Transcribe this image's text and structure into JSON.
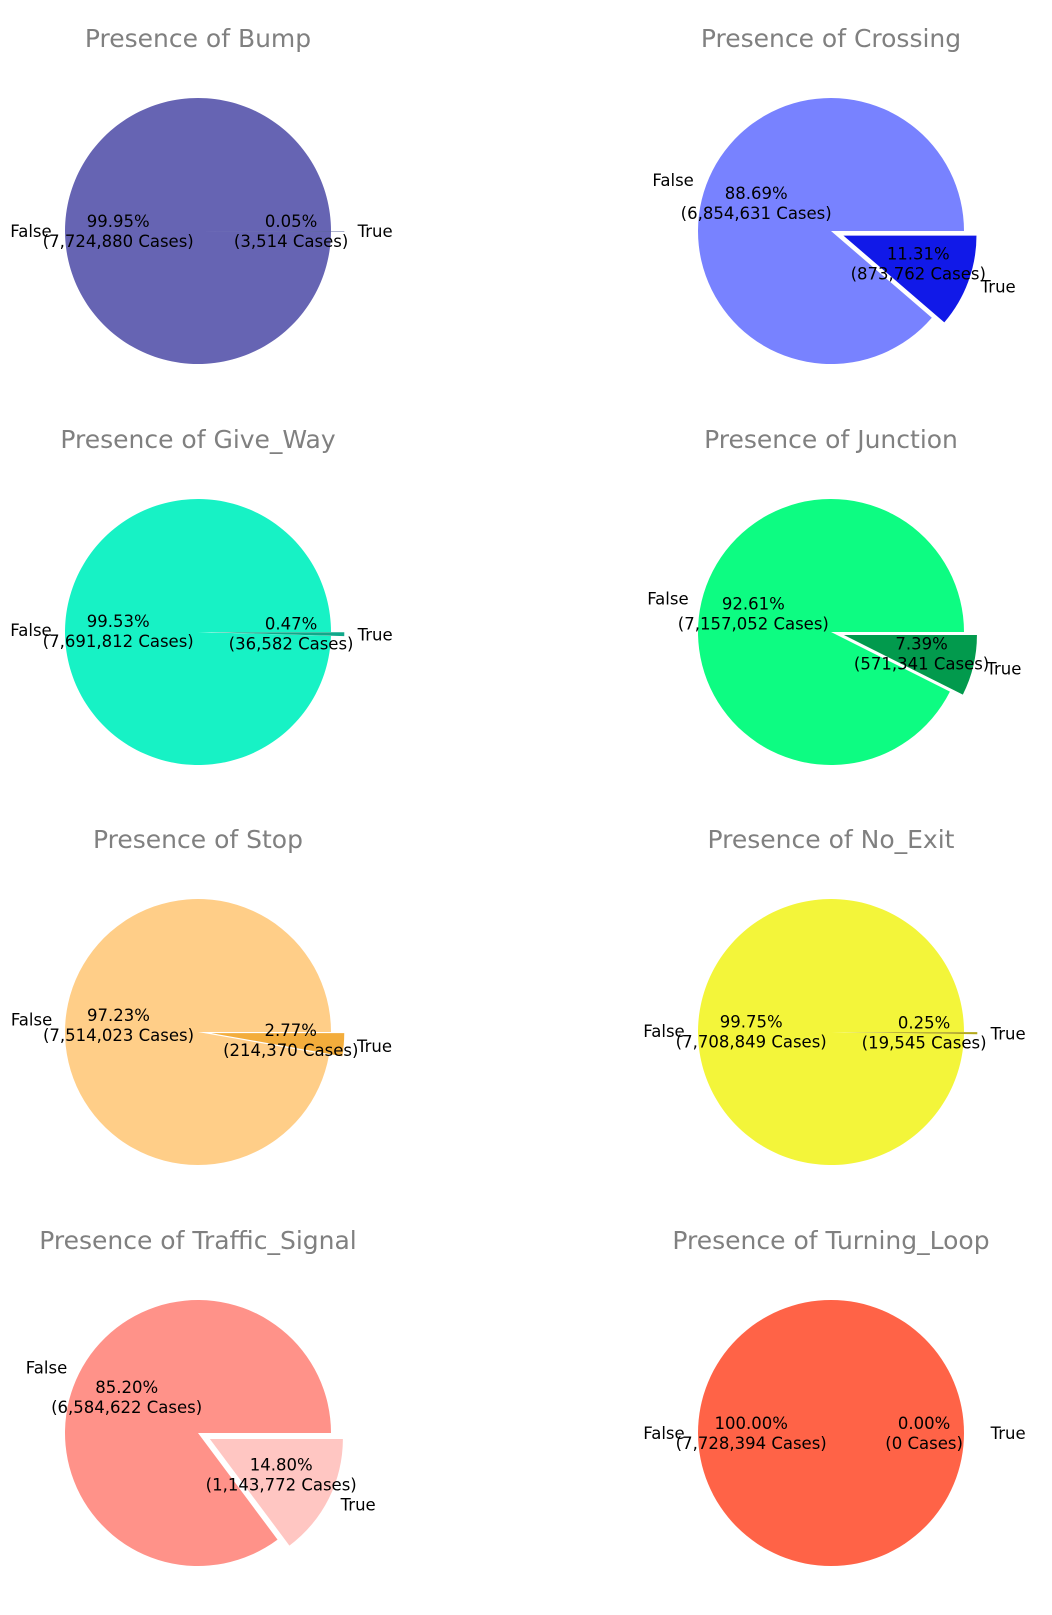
{
  "chart_data": [
    {
      "type": "pie",
      "title": "Presence of Bump",
      "labels": [
        "False",
        "True"
      ],
      "values": [
        7724880,
        3514
      ],
      "pct_labels": [
        "99.95%",
        "0.05%"
      ],
      "count_labels": [
        "(7,724,880 Cases)",
        "(3,514 Cases)"
      ],
      "colors": [
        "#6664b3",
        "#1a2b6e"
      ],
      "explode": [
        0,
        0.1
      ]
    },
    {
      "type": "pie",
      "title": "Presence of Crossing",
      "labels": [
        "False",
        "True"
      ],
      "values": [
        6854631,
        873762
      ],
      "pct_labels": [
        "88.69%",
        "11.31%"
      ],
      "count_labels": [
        "(6,854,631 Cases)",
        "(873,762 Cases)"
      ],
      "colors": [
        "#7882ff",
        "#1119e8"
      ],
      "explode": [
        0,
        0.1
      ]
    },
    {
      "type": "pie",
      "title": "Presence of Give_Way",
      "labels": [
        "False",
        "True"
      ],
      "values": [
        7691812,
        36582
      ],
      "pct_labels": [
        "99.53%",
        "0.47%"
      ],
      "count_labels": [
        "(7,691,812 Cases)",
        "(36,582 Cases)"
      ],
      "colors": [
        "#17f2c5",
        "#10a88a"
      ],
      "explode": [
        0,
        0.1
      ]
    },
    {
      "type": "pie",
      "title": "Presence of Junction",
      "labels": [
        "False",
        "True"
      ],
      "values": [
        7157052,
        571341
      ],
      "pct_labels": [
        "92.61%",
        "7.39%"
      ],
      "count_labels": [
        "(7,157,052 Cases)",
        "(571,341 Cases)"
      ],
      "colors": [
        "#0dfc82",
        "#029a4d"
      ],
      "explode": [
        0,
        0.1
      ]
    },
    {
      "type": "pie",
      "title": "Presence of Stop",
      "labels": [
        "False",
        "True"
      ],
      "values": [
        7514023,
        214370
      ],
      "pct_labels": [
        "97.23%",
        "2.77%"
      ],
      "count_labels": [
        "(7,514,023 Cases)",
        "(214,370 Cases)"
      ],
      "colors": [
        "#ffce88",
        "#f3ad3c"
      ],
      "explode": [
        0,
        0.1
      ]
    },
    {
      "type": "pie",
      "title": "Presence of No_Exit",
      "labels": [
        "False",
        "True"
      ],
      "values": [
        7708849,
        19545
      ],
      "pct_labels": [
        "99.75%",
        "0.25%"
      ],
      "count_labels": [
        "(7,708,849 Cases)",
        "(19,545 Cases)"
      ],
      "colors": [
        "#f3f53a",
        "#b3a81d"
      ],
      "explode": [
        0,
        0.1
      ]
    },
    {
      "type": "pie",
      "title": "Presence of Traffic_Signal",
      "labels": [
        "False",
        "True"
      ],
      "values": [
        6584622,
        1143772
      ],
      "pct_labels": [
        "85.20%",
        "14.80%"
      ],
      "count_labels": [
        "(6,584,622 Cases)",
        "(1,143,772 Cases)"
      ],
      "colors": [
        "#ff9289",
        "#ffc6c2"
      ],
      "explode": [
        0,
        0.1
      ]
    },
    {
      "type": "pie",
      "title": "Presence of Turning_Loop",
      "labels": [
        "False",
        "True"
      ],
      "values": [
        7728394,
        0
      ],
      "pct_labels": [
        "100.00%",
        "0.00%"
      ],
      "count_labels": [
        "(7,728,394 Cases)",
        "(0 Cases)"
      ],
      "colors": [
        "#ff6347",
        "#c0392b"
      ],
      "explode": [
        0,
        0.1
      ]
    }
  ]
}
